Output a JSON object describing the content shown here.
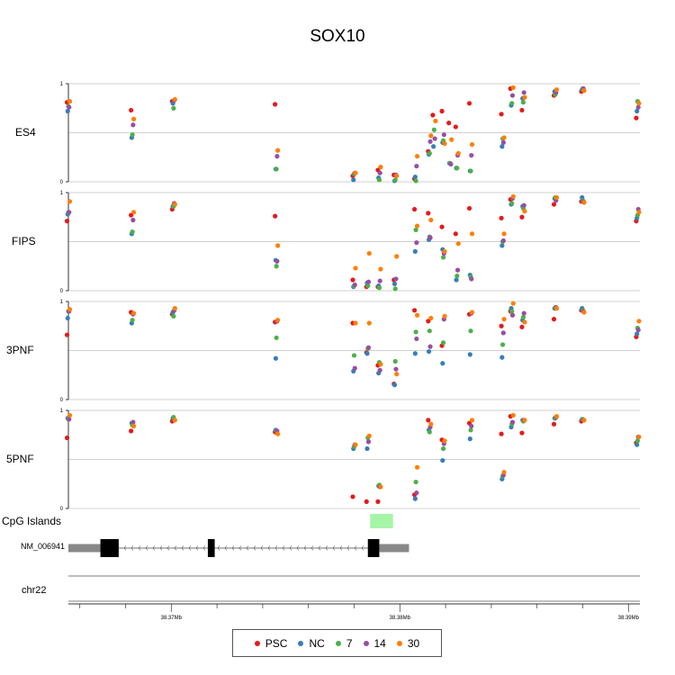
{
  "chart_data": {
    "type": "scatter",
    "title": "SOX10",
    "x_range_mb": [
      38.3655,
      38.3905
    ],
    "x_ticks": [
      38.37,
      38.38,
      38.39
    ],
    "x_tick_labels": [
      "38.37Mb",
      "38.38Mb",
      "38.39Mb"
    ],
    "y_range": [
      0,
      1
    ],
    "y_ticks": [
      "0",
      "1"
    ],
    "groups": [
      "PSC",
      "NC",
      "7",
      "14",
      "30"
    ],
    "group_colors": {
      "PSC": "#e41a1c",
      "NC": "#377eb8",
      "7": "#4daf4a",
      "14": "#984ea3",
      "30": "#ff7f00"
    },
    "panels": [
      {
        "name": "ES4",
        "points": [
          [
            38.3655,
            0.81,
            0.72,
            0.77,
            0.76,
            0.82
          ],
          [
            38.3683,
            0.73,
            0.45,
            0.48,
            0.58,
            0.64
          ],
          [
            38.3701,
            0.82,
            0.8,
            0.75,
            0.83,
            0.84
          ],
          [
            38.3746,
            0.79,
            0.13,
            0.13,
            0.26,
            0.32
          ],
          [
            38.378,
            0.06,
            0.02,
            0.08,
            0.09,
            0.09
          ],
          [
            38.3791,
            0.12,
            0.04,
            0.02,
            0.09,
            0.15
          ],
          [
            38.3798,
            0.07,
            0.01,
            0.02,
            0.07,
            0.06
          ],
          [
            38.3807,
            0.03,
            0.05,
            0.01,
            0.16,
            0.26
          ],
          [
            38.3813,
            0.31,
            0.28,
            0.29,
            0.41,
            0.47
          ],
          [
            38.3815,
            0.68,
            0.36,
            0.53,
            0.44,
            0.62
          ],
          [
            38.3819,
            0.72,
            0.4,
            0.42,
            0.48,
            0.39
          ],
          [
            38.3822,
            0.6,
            0.19,
            0.19,
            0.18,
            0.43
          ],
          [
            38.3825,
            0.56,
            0.14,
            0.14,
            0.27,
            0.29
          ],
          [
            38.3831,
            0.8,
            0.11,
            0.11,
            0.27,
            0.38
          ],
          [
            38.3845,
            0.69,
            0.36,
            0.44,
            0.4,
            0.45
          ],
          [
            38.3849,
            0.95,
            0.78,
            0.8,
            0.88,
            0.96
          ],
          [
            38.3854,
            0.73,
            0.85,
            0.81,
            0.91,
            0.86
          ],
          [
            38.3868,
            0.88,
            0.92,
            0.89,
            0.91,
            0.94
          ],
          [
            38.388,
            0.92,
            0.94,
            0.95,
            0.95,
            0.93
          ],
          [
            38.3904,
            0.65,
            0.72,
            0.82,
            0.76,
            0.8
          ]
        ]
      },
      {
        "name": "FIPS",
        "points": [
          [
            38.3655,
            0.71,
            0.78,
            0.8,
            0.8,
            0.91
          ],
          [
            38.3683,
            0.77,
            0.58,
            0.6,
            0.72,
            0.8
          ],
          [
            38.3701,
            0.83,
            0.86,
            0.86,
            0.89,
            0.88
          ],
          [
            38.3746,
            0.76,
            0.31,
            0.25,
            0.3,
            0.46
          ],
          [
            38.378,
            0.11,
            0.04,
            0.05,
            0.06,
            0.23
          ],
          [
            38.3786,
            0.04,
            0.08,
            0.05,
            0.09,
            0.38
          ],
          [
            38.3791,
            0.04,
            0.05,
            0.03,
            0.1,
            0.22
          ],
          [
            38.3798,
            0.11,
            0.07,
            0.02,
            0.12,
            0.35
          ],
          [
            38.3807,
            0.83,
            0.4,
            0.62,
            0.49,
            0.66
          ],
          [
            38.3813,
            0.79,
            0.52,
            0.55,
            0.54,
            0.72
          ],
          [
            38.3819,
            0.65,
            0.42,
            0.34,
            0.38,
            0.4
          ],
          [
            38.3825,
            0.58,
            0.11,
            0.15,
            0.21,
            0.48
          ],
          [
            38.3831,
            0.84,
            0.16,
            0.14,
            0.12,
            0.58
          ],
          [
            38.3845,
            0.74,
            0.46,
            0.5,
            0.51,
            0.58
          ],
          [
            38.3849,
            0.93,
            0.88,
            0.89,
            0.94,
            0.96
          ],
          [
            38.3854,
            0.75,
            0.86,
            0.84,
            0.87,
            0.81
          ],
          [
            38.3868,
            0.88,
            0.94,
            0.95,
            0.92,
            0.95
          ],
          [
            38.388,
            0.91,
            0.95,
            0.92,
            0.91,
            0.9
          ],
          [
            38.3904,
            0.71,
            0.74,
            0.77,
            0.83,
            0.8
          ]
        ]
      },
      {
        "name": "3PNF",
        "points": [
          [
            38.3655,
            0.66,
            0.83,
            0.9,
            0.9,
            0.92
          ],
          [
            38.3683,
            0.89,
            0.78,
            0.81,
            0.87,
            0.88
          ],
          [
            38.3701,
            0.87,
            0.89,
            0.85,
            0.91,
            0.93
          ],
          [
            38.3746,
            0.79,
            0.42,
            0.63,
            0.8,
            0.81
          ],
          [
            38.378,
            0.78,
            0.29,
            0.45,
            0.32,
            0.78
          ],
          [
            38.3786,
            0.48,
            0.47,
            0.52,
            0.53,
            0.78
          ],
          [
            38.3791,
            0.35,
            0.27,
            0.38,
            0.3,
            0.36
          ],
          [
            38.3798,
            0.16,
            0.15,
            0.39,
            0.31,
            0.26
          ],
          [
            38.3807,
            0.91,
            0.47,
            0.69,
            0.62,
            0.86
          ],
          [
            38.3813,
            0.8,
            0.49,
            0.7,
            0.54,
            0.83
          ],
          [
            38.3819,
            0.55,
            0.37,
            0.58,
            0.82,
            0.85
          ],
          [
            38.3831,
            0.87,
            0.46,
            0.7,
            0.88,
            0.89
          ],
          [
            38.3845,
            0.75,
            0.43,
            0.56,
            0.68,
            0.82
          ],
          [
            38.3849,
            0.9,
            0.93,
            0.9,
            0.86,
            0.98
          ],
          [
            38.3854,
            0.74,
            0.81,
            0.84,
            0.88,
            0.79
          ],
          [
            38.3868,
            0.82,
            0.93,
            0.94,
            0.94,
            0.93
          ],
          [
            38.388,
            0.91,
            0.93,
            0.91,
            0.9,
            0.89
          ],
          [
            38.3904,
            0.64,
            0.67,
            0.73,
            0.71,
            0.8
          ]
        ]
      },
      {
        "name": "5PNF",
        "points": [
          [
            38.3655,
            0.72,
            0.92,
            0.91,
            0.91,
            0.95
          ],
          [
            38.3683,
            0.79,
            0.87,
            0.85,
            0.88,
            0.84
          ],
          [
            38.3701,
            0.89,
            0.92,
            0.93,
            0.9,
            0.9
          ],
          [
            38.3746,
            0.78,
            0.8,
            0.79,
            0.79,
            0.76
          ],
          [
            38.378,
            0.12,
            0.61,
            0.63,
            0.65,
            0.65
          ],
          [
            38.3786,
            0.07,
            0.61,
            0.72,
            0.68,
            0.74
          ],
          [
            38.3791,
            0.07,
            0.23,
            0.24,
            0.22,
            0.22
          ],
          [
            38.3807,
            0.14,
            0.1,
            0.27,
            0.16,
            0.42
          ],
          [
            38.3813,
            0.9,
            0.8,
            0.78,
            0.83,
            0.86
          ],
          [
            38.3819,
            0.7,
            0.49,
            0.61,
            0.66,
            0.69
          ],
          [
            38.3831,
            0.87,
            0.71,
            0.8,
            0.84,
            0.9
          ],
          [
            38.3845,
            0.76,
            0.3,
            0.33,
            0.34,
            0.37
          ],
          [
            38.3849,
            0.94,
            0.83,
            0.86,
            0.88,
            0.95
          ],
          [
            38.3854,
            0.77,
            0.9,
            0.89,
            0.9,
            0.9
          ],
          [
            38.3868,
            0.86,
            0.92,
            0.92,
            0.93,
            0.94
          ],
          [
            38.388,
            0.89,
            0.91,
            0.91,
            0.9,
            0.9
          ],
          [
            38.3904,
            0.67,
            0.65,
            0.69,
            0.73,
            0.73
          ]
        ]
      }
    ],
    "cpg_track_label": "CpG Islands",
    "cpg_islands": [
      [
        38.3787,
        38.3797
      ]
    ],
    "gene_track_label": "NM_006941",
    "gene": {
      "start": 38.3655,
      "end": 38.3804,
      "exons": [
        {
          "start": 38.3655,
          "end": 38.3669,
          "thick": false
        },
        {
          "start": 38.3669,
          "end": 38.3677,
          "thick": true
        },
        {
          "start": 38.3716,
          "end": 38.3719,
          "thick": true
        },
        {
          "start": 38.3786,
          "end": 38.3791,
          "thick": true
        },
        {
          "start": 38.3791,
          "end": 38.3804,
          "thick": false
        }
      ]
    },
    "ideogram_label": "chr22"
  }
}
